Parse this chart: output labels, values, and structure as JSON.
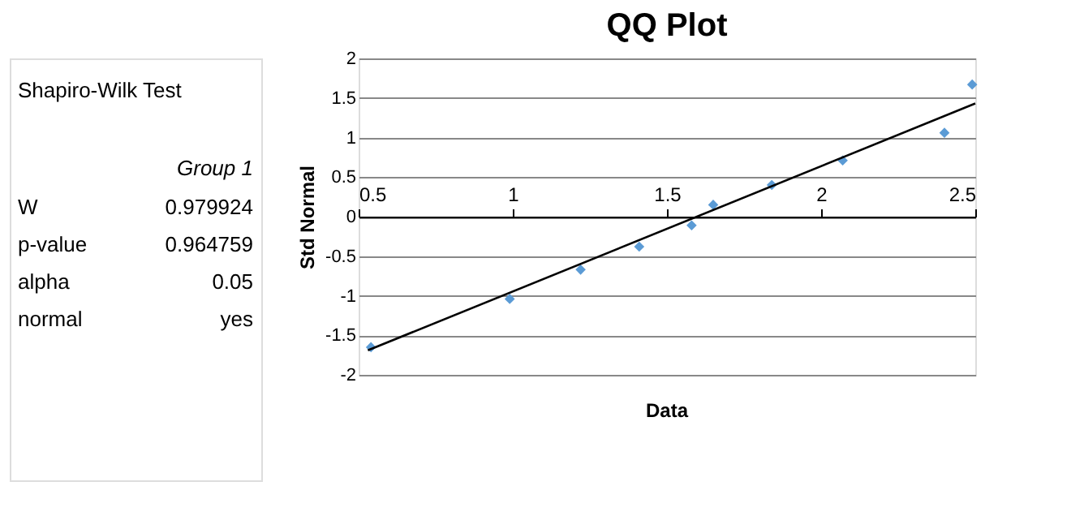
{
  "chart_data": {
    "type": "scatter",
    "title": "QQ Plot",
    "xlabel": "Data",
    "ylabel": "Std Normal",
    "xlim": [
      0.5,
      2.5
    ],
    "xticks": [
      0.5,
      1,
      1.5,
      2,
      2.5
    ],
    "ylim": [
      -2,
      2
    ],
    "yticks": [
      -2,
      -1.5,
      -1,
      -0.5,
      0,
      0.5,
      1,
      1.5,
      2
    ],
    "grid": "y",
    "legend": false,
    "series": [
      {
        "color": "#5b9bd5",
        "marker": "diamond",
        "x": [
          0.54,
          0.99,
          1.22,
          1.41,
          1.58,
          1.65,
          1.84,
          2.07,
          2.4,
          2.49
        ],
        "values": [
          -1.65,
          -1.04,
          -0.67,
          -0.38,
          -0.11,
          0.15,
          0.4,
          0.71,
          1.06,
          1.67
        ]
      },
      {
        "type": "line",
        "color": "#000000",
        "x": [
          0.53,
          2.5
        ],
        "values": [
          -1.69,
          1.43
        ]
      }
    ],
    "annotations": [
      "Shapiro-Wilk Test",
      "Group 1",
      "W",
      "0.979924",
      "p-value",
      "0.964759",
      "alpha",
      "0.05",
      "normal",
      "yes"
    ]
  }
}
